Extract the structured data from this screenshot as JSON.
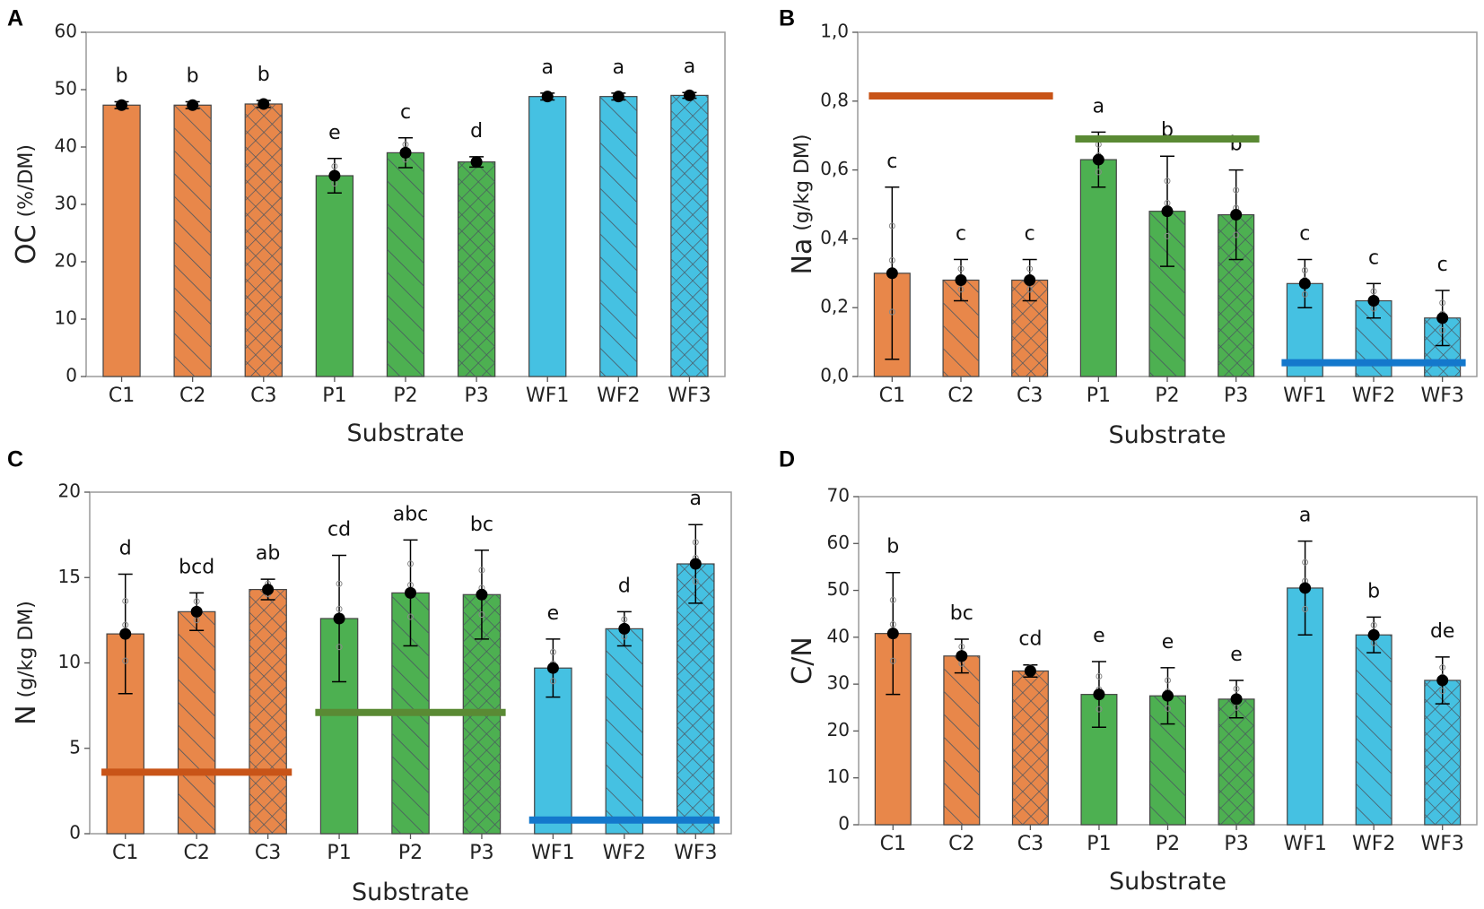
{
  "chart_data": [
    {
      "panel": "A",
      "type": "bar",
      "xlabel": "Substrate",
      "ylabel_main": "OC",
      "ylabel_unit": "(%/DM)",
      "ylim": [
        0,
        60
      ],
      "yticks": [
        0,
        10,
        20,
        30,
        40,
        50,
        60
      ],
      "ytick_labels": [
        "0",
        "10",
        "20",
        "30",
        "40",
        "50",
        "60"
      ],
      "categories": [
        "C1",
        "C2",
        "C3",
        "P1",
        "P2",
        "P3",
        "WF1",
        "WF2",
        "WF3"
      ],
      "values": [
        47.3,
        47.3,
        47.5,
        35.0,
        39.0,
        37.4,
        48.8,
        48.8,
        49.0
      ],
      "errors": [
        0.6,
        0.6,
        0.6,
        3.0,
        2.6,
        0.9,
        0.6,
        0.6,
        0.5
      ],
      "letters": [
        "b",
        "b",
        "b",
        "e",
        "c",
        "d",
        "a",
        "a",
        "a"
      ],
      "reference_lines": []
    },
    {
      "panel": "B",
      "type": "bar",
      "xlabel": "Substrate",
      "ylabel_main": "Na",
      "ylabel_unit": "(g/kg DM)",
      "ylim": [
        0,
        1
      ],
      "yticks": [
        0,
        0.2,
        0.4,
        0.6,
        0.8,
        1.0
      ],
      "ytick_labels": [
        "0,0",
        "0,2",
        "0,4",
        "0,6",
        "0,8",
        "1,0"
      ],
      "categories": [
        "C1",
        "C2",
        "C3",
        "P1",
        "P2",
        "P3",
        "WF1",
        "WF2",
        "WF3"
      ],
      "values": [
        0.3,
        0.28,
        0.28,
        0.63,
        0.48,
        0.47,
        0.27,
        0.22,
        0.17
      ],
      "errors": [
        0.25,
        0.06,
        0.06,
        0.08,
        0.16,
        0.13,
        0.07,
        0.05,
        0.08
      ],
      "letters": [
        "c",
        "c",
        "c",
        "a",
        "b",
        "b",
        "c",
        "c",
        "c"
      ],
      "reference_lines": [
        {
          "group": "C",
          "value": 0.815
        },
        {
          "group": "P",
          "value": 0.69
        },
        {
          "group": "WF",
          "value": 0.04
        }
      ]
    },
    {
      "panel": "C",
      "type": "bar",
      "xlabel": "Substrate",
      "ylabel_main": "N",
      "ylabel_unit": "(g/kg DM)",
      "ylim": [
        0,
        20
      ],
      "yticks": [
        0,
        5,
        10,
        15,
        20
      ],
      "ytick_labels": [
        "0",
        "5",
        "10",
        "15",
        "20"
      ],
      "categories": [
        "C1",
        "C2",
        "C3",
        "P1",
        "P2",
        "P3",
        "WF1",
        "WF2",
        "WF3"
      ],
      "values": [
        11.7,
        13.0,
        14.3,
        12.6,
        14.1,
        14.0,
        9.7,
        12.0,
        15.8
      ],
      "errors": [
        3.5,
        1.1,
        0.6,
        3.7,
        3.1,
        2.6,
        1.7,
        1.0,
        2.3
      ],
      "letters": [
        "d",
        "bcd",
        "ab",
        "cd",
        "abc",
        "bc",
        "e",
        "d",
        "a"
      ],
      "reference_lines": [
        {
          "group": "C",
          "value": 3.6
        },
        {
          "group": "P",
          "value": 7.1
        },
        {
          "group": "WF",
          "value": 0.8
        }
      ]
    },
    {
      "panel": "D",
      "type": "bar",
      "xlabel": "Substrate",
      "ylabel_main": "C/N",
      "ylabel_unit": "",
      "ylim": [
        0,
        70
      ],
      "yticks": [
        0,
        10,
        20,
        30,
        40,
        50,
        60,
        70
      ],
      "ytick_labels": [
        "0",
        "10",
        "20",
        "30",
        "40",
        "50",
        "60",
        "70"
      ],
      "categories": [
        "C1",
        "C2",
        "C3",
        "P1",
        "P2",
        "P3",
        "WF1",
        "WF2",
        "WF3"
      ],
      "values": [
        40.8,
        36.0,
        32.8,
        27.8,
        27.5,
        26.8,
        50.5,
        40.5,
        30.8
      ],
      "errors": [
        13.0,
        3.6,
        1.3,
        7.0,
        6.0,
        4.0,
        10.0,
        3.8,
        5.0
      ],
      "letters": [
        "b",
        "bc",
        "cd",
        "e",
        "e",
        "e",
        "a",
        "b",
        "de"
      ],
      "reference_lines": []
    }
  ],
  "colors": {
    "C": "#E8874A",
    "P": "#4DB051",
    "WF": "#45C1E2",
    "ref_C": "#C85418",
    "ref_P": "#5A8A34",
    "ref_WF": "#1478CC",
    "error": "#000000",
    "hatch": "#4A5560",
    "point_small": "#8a8a8a"
  },
  "patterns": {
    "1": "solid",
    "2": "diagonal-hatch",
    "3": "cross-hatch"
  }
}
